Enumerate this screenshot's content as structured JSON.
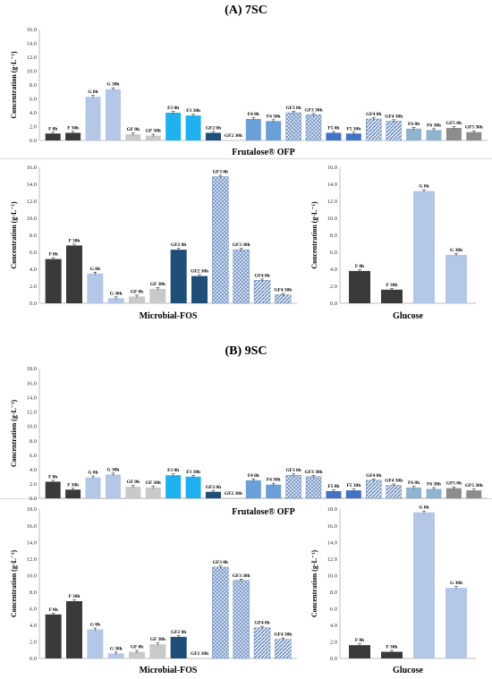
{
  "sections": {
    "a_title": "(A) 7SC",
    "b_title": "(B) 9SC"
  },
  "colors": {
    "F": "#3a3a3a",
    "G": "#b4c7e7",
    "GF": "#c9c9c9",
    "F3": "#1fb0ef",
    "GF2": "#1f4e79",
    "F4": "#6a9fd8",
    "GF3": "#a9bfd9",
    "F5": "#4472c4",
    "GF4": "#9cb6dc",
    "F6": "#8eb4cf",
    "GF5": "#8c8c8c"
  },
  "chart_data": [
    {
      "id": "a1",
      "type": "bar",
      "title": "Frutalose® OFP",
      "ylabel": "Concentration (g·L⁻¹)",
      "ylim": [
        0,
        16
      ],
      "yticks": [
        "0.0",
        "2.0",
        "4.0",
        "6.0",
        "8.0",
        "10.0",
        "12.0",
        "14.0",
        "16.0"
      ],
      "grid": false,
      "categories": [
        "F 0h",
        "F 30h",
        "G 0h",
        "G 30h",
        "GF 0h",
        "GF 30h",
        "F3 0h",
        "F3 30h",
        "GF2 0h",
        "GF2 30h",
        "F4 0h",
        "F4 30h",
        "GF3 0h",
        "GF3 30h",
        "F5 0h",
        "F5 30h",
        "GF4 0h",
        "GF4 30h",
        "F6 0h",
        "F6 30h",
        "GF5 0h",
        "GF5 30h"
      ],
      "values": [
        1.0,
        1.1,
        6.3,
        7.4,
        0.9,
        0.7,
        4.0,
        3.6,
        1.1,
        0.0,
        3.1,
        2.8,
        4.0,
        3.7,
        1.1,
        1.0,
        3.1,
        2.8,
        1.7,
        1.5,
        1.8,
        1.2
      ],
      "groups": [
        "F",
        "F",
        "G",
        "G",
        "GF",
        "GF",
        "F3",
        "F3",
        "GF2",
        "GF2",
        "F4",
        "F4",
        "GF3",
        "GF3",
        "F5",
        "F5",
        "GF4",
        "GF4",
        "F6",
        "F6",
        "GF5",
        "GF5"
      ]
    },
    {
      "id": "a2",
      "type": "bar",
      "title": "Microbial-FOS",
      "ylabel": "Concentration (g·L⁻¹)",
      "ylim": [
        0,
        16
      ],
      "yticks": [
        "0.0",
        "2.0",
        "4.0",
        "6.0",
        "8.0",
        "10.0",
        "12.0",
        "14.0",
        "16.0"
      ],
      "grid": false,
      "categories": [
        "F 0h",
        "F 30h",
        "G 0h",
        "G 30h",
        "GF 0h",
        "GF 30h",
        "GF2 0h",
        "GF2 30h",
        "GF3 0h",
        "GF3 30h",
        "GF4 0h",
        "GF4 30h"
      ],
      "values": [
        5.2,
        6.8,
        3.5,
        0.6,
        0.8,
        1.7,
        6.3,
        3.2,
        14.9,
        6.3,
        2.7,
        1.0
      ],
      "groups": [
        "F",
        "F",
        "G",
        "G",
        "GF",
        "GF",
        "GF2",
        "GF2",
        "GF3",
        "GF3",
        "GF4",
        "GF4"
      ]
    },
    {
      "id": "a3",
      "type": "bar",
      "title": "Glucose",
      "ylabel": "Concentration (g·L⁻¹)",
      "ylim": [
        0,
        16
      ],
      "yticks": [
        "0.0",
        "2.0",
        "4.0",
        "6.0",
        "8.0",
        "10.0",
        "12.0",
        "14.0",
        "16.0"
      ],
      "grid": false,
      "categories": [
        "F 0h",
        "F 30h",
        "G 0h",
        "G 30h"
      ],
      "values": [
        3.8,
        1.6,
        13.2,
        5.7
      ],
      "groups": [
        "F",
        "F",
        "G",
        "G"
      ]
    },
    {
      "id": "b1",
      "type": "bar",
      "title": "Frutalose® OFP",
      "ylabel": "Concentration (g·L⁻¹)",
      "ylim": [
        0,
        18
      ],
      "yticks": [
        "0.0",
        "2.0",
        "4.0",
        "6.0",
        "8.0",
        "10.0",
        "12.0",
        "14.0",
        "16.0",
        "18.0"
      ],
      "grid": false,
      "categories": [
        "F 0h",
        "F 30h",
        "G 0h",
        "G 30h",
        "GF 0h",
        "GF 30h",
        "F3 0h",
        "F3 30h",
        "GF2 0h",
        "GF2 30h",
        "F4 0h",
        "F4 30h",
        "GF3 0h",
        "GF3 30h",
        "F5 0h",
        "F5 30h",
        "GF4 0h",
        "GF4 30h",
        "F6 0h",
        "F6 30h",
        "GF5 0h",
        "GF5 30h"
      ],
      "values": [
        2.3,
        1.2,
        2.9,
        3.3,
        1.6,
        1.5,
        3.2,
        3.0,
        0.9,
        0.0,
        2.5,
        1.9,
        3.2,
        3.0,
        1.0,
        1.1,
        2.5,
        1.8,
        1.5,
        1.3,
        1.4,
        1.1
      ],
      "groups": [
        "F",
        "F",
        "G",
        "G",
        "GF",
        "GF",
        "F3",
        "F3",
        "GF2",
        "GF2",
        "F4",
        "F4",
        "GF3",
        "GF3",
        "F5",
        "F5",
        "GF4",
        "GF4",
        "F6",
        "F6",
        "GF5",
        "GF5"
      ]
    },
    {
      "id": "b2",
      "type": "bar",
      "title": "Microbial-FOS",
      "ylabel": "Concentration (g·L⁻¹)",
      "ylim": [
        0,
        18
      ],
      "yticks": [
        "0.0",
        "2.0",
        "4.0",
        "6.0",
        "8.0",
        "10.0",
        "12.0",
        "14.0",
        "16.0",
        "18.0"
      ],
      "grid": false,
      "categories": [
        "F 0h",
        "F 30h",
        "G 0h",
        "G 30h",
        "GF 0h",
        "GF 30h",
        "GF2 0h",
        "GF2 30h",
        "GF3 0h",
        "GF3 30h",
        "GF4 0h",
        "GF4 30h"
      ],
      "values": [
        5.3,
        6.9,
        3.5,
        0.6,
        0.8,
        1.7,
        2.6,
        0.0,
        11.0,
        9.4,
        3.7,
        2.3
      ],
      "groups": [
        "F",
        "F",
        "G",
        "G",
        "GF",
        "GF",
        "GF2",
        "GF2",
        "GF3",
        "GF3",
        "GF4",
        "GF4"
      ]
    },
    {
      "id": "b3",
      "type": "bar",
      "title": "Glucose",
      "ylabel": "Concentration (g·L⁻¹)",
      "ylim": [
        0,
        18
      ],
      "yticks": [
        "0.0",
        "2.0",
        "4.0",
        "6.0",
        "8.0",
        "10.0",
        "12.0",
        "14.0",
        "16.0",
        "18.0"
      ],
      "grid": false,
      "categories": [
        "F 0h",
        "F 30h",
        "G 0h",
        "G 30h"
      ],
      "values": [
        1.6,
        0.8,
        17.6,
        8.5
      ],
      "groups": [
        "F",
        "F",
        "G",
        "G"
      ]
    }
  ]
}
